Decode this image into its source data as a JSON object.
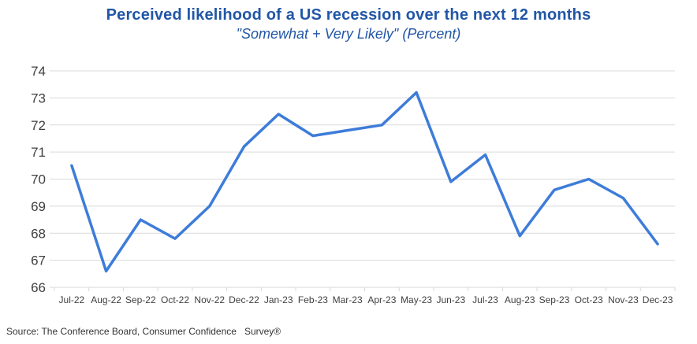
{
  "header": {
    "title": "Perceived likelihood of a US recession over the next 12 months",
    "subtitle": "\"Somewhat + Very Likely\" (Percent)"
  },
  "footer": {
    "source": "Source: The Conference Board, Consumer Confidence   Survey®"
  },
  "colors": {
    "title_blue": "#2156A6",
    "line_blue": "#3D7CD9",
    "grid_gray": "#D9D9D9",
    "label_gray": "#404040"
  },
  "chart_data": {
    "type": "line",
    "title": "Perceived likelihood of a US recession over the next 12 months",
    "subtitle": "\"Somewhat + Very Likely\" (Percent)",
    "categories": [
      "Jul-22",
      "Aug-22",
      "Sep-22",
      "Oct-22",
      "Nov-22",
      "Dec-22",
      "Jan-23",
      "Feb-23",
      "Mar-23",
      "Apr-23",
      "May-23",
      "Jun-23",
      "Jul-23",
      "Aug-23",
      "Sep-23",
      "Oct-23",
      "Nov-23",
      "Dec-23"
    ],
    "series": [
      {
        "name": "Somewhat + Very Likely (Percent)",
        "values": [
          70.5,
          66.6,
          68.5,
          67.8,
          69.0,
          71.2,
          72.4,
          71.6,
          71.8,
          72.0,
          73.2,
          69.9,
          70.9,
          67.9,
          69.6,
          70.0,
          69.3,
          67.6
        ]
      }
    ],
    "xlabel": "",
    "ylabel": "",
    "ylim": [
      66,
      74
    ],
    "yticks": [
      66,
      67,
      68,
      69,
      70,
      71,
      72,
      73,
      74
    ],
    "grid": "horizontal",
    "legend": "none",
    "line_color": "#3D7CD9"
  }
}
